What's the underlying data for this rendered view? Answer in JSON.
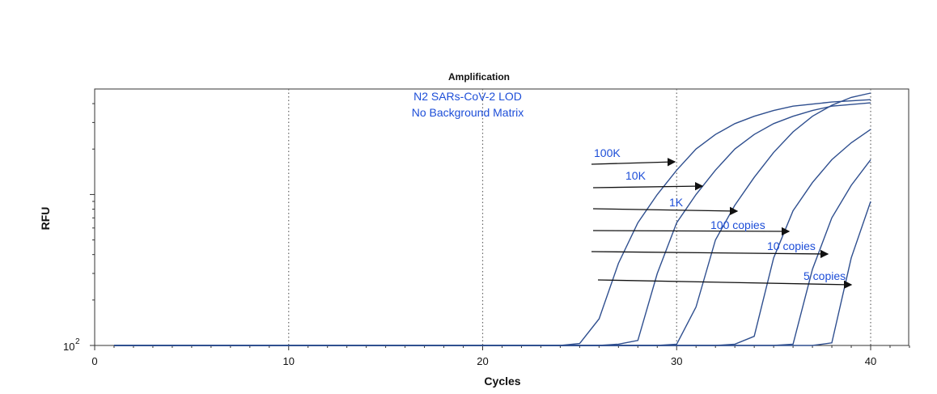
{
  "chart_data": {
    "type": "line",
    "title": "Amplification",
    "xlabel": "Cycles",
    "ylabel": "RFU",
    "xlim": [
      0,
      42
    ],
    "x_ticks": [
      0,
      10,
      20,
      30,
      40
    ],
    "y_scale": "log",
    "y_tick_label": {
      "base": "10",
      "exp": "2"
    },
    "ylim": [
      100,
      5000
    ],
    "grid": {
      "vertical_at": [
        10,
        20,
        30,
        40
      ],
      "style": "dotted"
    },
    "annotations": [
      "N2 SARs-CoV-2 LOD",
      "No Background Matrix"
    ],
    "series": [
      {
        "name": "100K",
        "x": [
          1,
          24,
          25,
          26,
          27,
          28,
          29,
          30,
          31,
          32,
          33,
          34,
          35,
          36,
          38,
          40
        ],
        "y": [
          100,
          100,
          103,
          150,
          350,
          650,
          1000,
          1450,
          2000,
          2500,
          2950,
          3300,
          3600,
          3850,
          4100,
          4250
        ]
      },
      {
        "name": "10K",
        "x": [
          1,
          26,
          27,
          28,
          29,
          30,
          31,
          32,
          33,
          34,
          35,
          36,
          37,
          38,
          40
        ],
        "y": [
          100,
          100,
          102,
          108,
          300,
          650,
          1000,
          1450,
          2000,
          2500,
          2950,
          3300,
          3600,
          3850,
          4050
        ]
      },
      {
        "name": "1K",
        "x": [
          1,
          29,
          30,
          31,
          32,
          33,
          34,
          35,
          36,
          37,
          38,
          39,
          40
        ],
        "y": [
          100,
          100,
          102,
          180,
          500,
          850,
          1300,
          1900,
          2600,
          3300,
          3900,
          4400,
          4700
        ]
      },
      {
        "name": "100 copies",
        "x": [
          1,
          32,
          33,
          34,
          35,
          36,
          37,
          38,
          39,
          40
        ],
        "y": [
          100,
          100,
          102,
          115,
          380,
          780,
          1200,
          1700,
          2200,
          2700
        ]
      },
      {
        "name": "10 copies",
        "x": [
          1,
          35,
          36,
          37,
          38,
          39,
          40
        ],
        "y": [
          100,
          100,
          102,
          320,
          700,
          1150,
          1700
        ]
      },
      {
        "name": "5 copies",
        "x": [
          1,
          37,
          38,
          39,
          40
        ],
        "y": [
          100,
          100,
          104,
          380,
          900
        ]
      }
    ]
  }
}
